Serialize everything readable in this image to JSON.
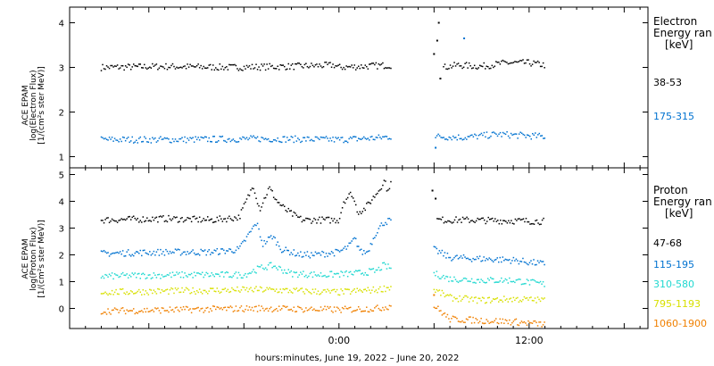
{
  "chart_data": [
    {
      "type": "scatter",
      "panel": "electron",
      "ylabel_lines": [
        "ACE EPAM",
        "log(Electron Flux)",
        "[1/(cm²s ster MeV)]"
      ],
      "yticks": [
        "1",
        "2",
        "3",
        "4"
      ],
      "ylim": [
        0.75,
        4.35
      ],
      "legend_title": [
        "Electron",
        "Energy ran",
        "[keV]"
      ],
      "series": [
        {
          "name": "38-53",
          "color": "#000000",
          "segments": [
            {
              "x": [
                -15.0,
                -11.0,
                -7.0,
                -3.0,
                -0.3,
                0.0,
                3.3
              ],
              "y": [
                3.0,
                3.02,
                3.0,
                3.02,
                3.05,
                3.0,
                3.05
              ]
            },
            {
              "x": [
                6.6,
                7.5,
                9.0,
                10.5,
                12.0,
                13.0
              ],
              "y": [
                3.0,
                3.05,
                3.02,
                3.1,
                3.1,
                3.05
              ]
            }
          ],
          "outliers": [
            {
              "x": 6.0,
              "y": 3.3
            },
            {
              "x": 6.2,
              "y": 3.6
            },
            {
              "x": 6.3,
              "y": 4.0
            },
            {
              "x": 6.4,
              "y": 2.75
            }
          ]
        },
        {
          "name": "175-315",
          "color": "#0072d0",
          "segments": [
            {
              "x": [
                -15.0,
                -10.0,
                -5.0,
                0.0,
                2.5,
                3.3
              ],
              "y": [
                1.38,
                1.38,
                1.4,
                1.38,
                1.42,
                1.45
              ]
            },
            {
              "x": [
                6.1,
                8.0,
                10.0,
                13.0
              ],
              "y": [
                1.45,
                1.43,
                1.5,
                1.45
              ]
            }
          ],
          "outliers": [
            {
              "x": 7.9,
              "y": 3.65
            },
            {
              "x": 6.1,
              "y": 1.2
            }
          ]
        }
      ]
    },
    {
      "type": "scatter",
      "panel": "proton",
      "ylabel_lines": [
        "ACE EPAM",
        "log(Proton Flux)",
        "[1/(cm²s ster MeV)]"
      ],
      "yticks": [
        "0",
        "1",
        "2",
        "3",
        "4",
        "5"
      ],
      "ylim": [
        -0.75,
        5.25
      ],
      "legend_title": [
        "Proton",
        "Energy ran",
        "[keV]"
      ],
      "series": [
        {
          "name": "47-68",
          "color": "#000000",
          "segments": [
            {
              "x": [
                -15.0,
                -11.0,
                -8.0,
                -6.3,
                -5.4,
                -5.0,
                -4.4,
                -3.9,
                -3.4,
                -2.9,
                -2.3,
                -1.6,
                0.0,
                0.3,
                0.8,
                1.2,
                1.6,
                2.0,
                2.5,
                2.9,
                3.1,
                3.3
              ],
              "y": [
                3.3,
                3.35,
                3.3,
                3.4,
                4.6,
                3.7,
                4.5,
                4.0,
                3.7,
                3.5,
                3.3,
                3.3,
                3.3,
                4.0,
                4.3,
                3.6,
                3.7,
                4.0,
                4.4,
                4.8,
                4.3,
                4.9
              ]
            },
            {
              "x": [
                6.2,
                8.0,
                10.0,
                13.0
              ],
              "y": [
                3.3,
                3.3,
                3.28,
                3.25
              ]
            }
          ],
          "outliers": [
            {
              "x": 5.9,
              "y": 4.4
            },
            {
              "x": 6.1,
              "y": 4.1
            }
          ]
        },
        {
          "name": "115-195",
          "color": "#0072d0",
          "segments": [
            {
              "x": [
                -15.0,
                -11.0,
                -8.0,
                -6.3,
                -5.2,
                -4.8,
                -4.2,
                -3.6,
                -3.0,
                -2.4,
                -1.6,
                0.0,
                0.6,
                1.0,
                1.4,
                1.8,
                2.3,
                2.8,
                3.3
              ],
              "y": [
                2.05,
                2.1,
                2.1,
                2.2,
                3.2,
                2.4,
                2.7,
                2.2,
                2.1,
                2.0,
                2.0,
                2.1,
                2.3,
                2.6,
                2.1,
                2.1,
                2.8,
                3.2,
                3.3
              ]
            },
            {
              "x": [
                6.0,
                7.0,
                9.0,
                11.0,
                13.0
              ],
              "y": [
                2.2,
                1.9,
                1.85,
                1.8,
                1.65
              ]
            }
          ],
          "outliers": []
        },
        {
          "name": "310-580",
          "color": "#20d8d0",
          "segments": [
            {
              "x": [
                -15.0,
                -10.0,
                -6.0,
                -5.0,
                -4.2,
                -3.0,
                -1.0,
                1.0,
                2.4,
                2.8,
                3.3
              ],
              "y": [
                1.2,
                1.25,
                1.25,
                1.5,
                1.6,
                1.3,
                1.25,
                1.3,
                1.4,
                1.6,
                1.5
              ]
            },
            {
              "x": [
                6.0,
                7.0,
                9.0,
                11.0,
                13.0
              ],
              "y": [
                1.3,
                1.1,
                1.05,
                1.05,
                0.9
              ]
            }
          ],
          "outliers": []
        },
        {
          "name": "795-1193",
          "color": "#d8e000",
          "segments": [
            {
              "x": [
                -15.0,
                -10.0,
                -5.0,
                0.0,
                2.5,
                3.3
              ],
              "y": [
                0.6,
                0.65,
                0.7,
                0.6,
                0.7,
                0.8
              ]
            },
            {
              "x": [
                6.0,
                7.0,
                9.0,
                11.0,
                13.0
              ],
              "y": [
                0.7,
                0.4,
                0.3,
                0.35,
                0.3
              ]
            }
          ],
          "outliers": []
        },
        {
          "name": "1060-1900",
          "color": "#f08000",
          "segments": [
            {
              "x": [
                -15.0,
                -10.0,
                -5.0,
                0.0,
                2.5,
                3.3
              ],
              "y": [
                -0.1,
                -0.05,
                0.0,
                -0.05,
                0.0,
                0.1
              ]
            },
            {
              "x": [
                6.0,
                7.0,
                9.0,
                11.0,
                13.0
              ],
              "y": [
                0.1,
                -0.4,
                -0.45,
                -0.5,
                -0.6
              ]
            }
          ],
          "outliers": [
            {
              "x": 6.0,
              "y": 0.5
            }
          ]
        }
      ]
    }
  ],
  "xaxis": {
    "range_hours": [
      -17.0,
      19.5
    ],
    "tick_labels": [
      {
        "hours": 0,
        "label": "0:00"
      },
      {
        "hours": 12,
        "label": "12:00"
      }
    ],
    "xlabel": "hours:minutes, June 19, 2022 – June 20, 2022"
  }
}
